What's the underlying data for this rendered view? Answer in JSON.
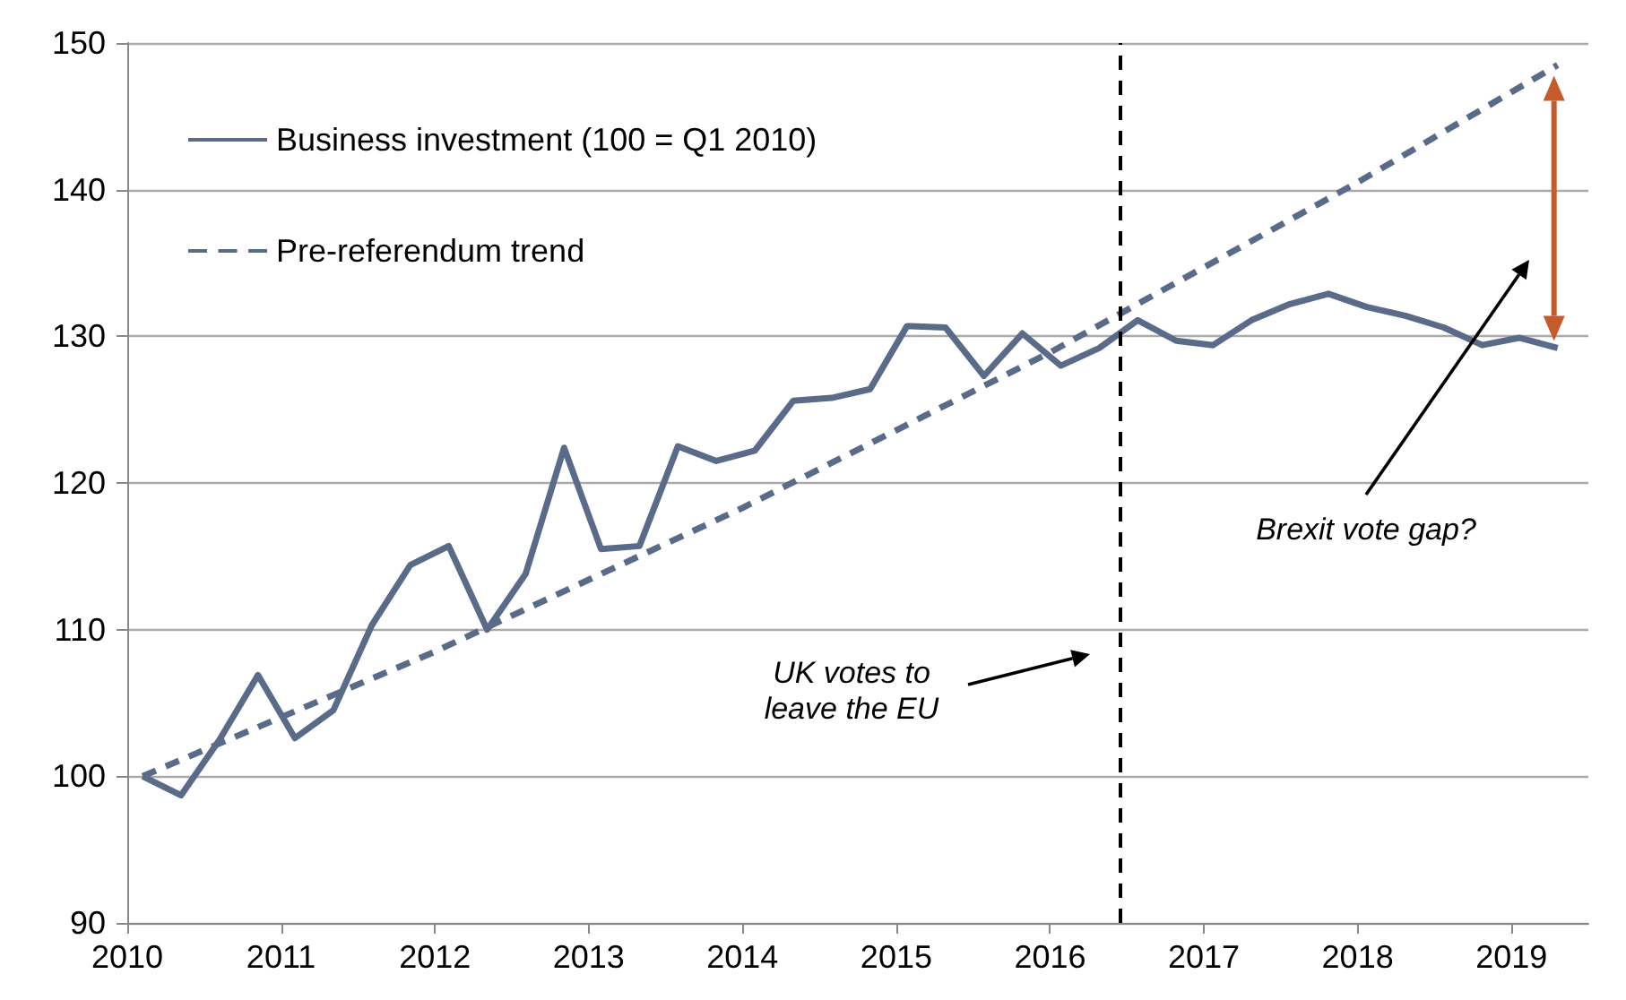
{
  "chart_data": {
    "type": "line",
    "x": [
      2010.1,
      2010.35,
      2010.6,
      2010.85,
      2011.09,
      2011.34,
      2011.59,
      2011.84,
      2012.09,
      2012.34,
      2012.59,
      2012.84,
      2013.08,
      2013.33,
      2013.58,
      2013.83,
      2014.08,
      2014.33,
      2014.58,
      2014.83,
      2015.07,
      2015.32,
      2015.57,
      2015.82,
      2016.07,
      2016.32,
      2016.57,
      2016.82,
      2017.06,
      2017.31,
      2017.56,
      2017.81,
      2018.06,
      2018.31,
      2018.56,
      2018.81,
      2019.05,
      2019.3
    ],
    "series": [
      {
        "name": "Business investment (100 = Q1 2010)",
        "color": "#5a6b8a",
        "line_style": "solid",
        "values": [
          100,
          98.7,
          102.5,
          106.9,
          102.6,
          104.5,
          110.3,
          114.4,
          115.7,
          110.0,
          113.8,
          122.4,
          115.5,
          115.7,
          122.5,
          121.5,
          122.2,
          125.6,
          125.8,
          126.4,
          130.7,
          130.6,
          127.3,
          130.2,
          128.0,
          129.2,
          131.1,
          129.7,
          129.4,
          131.1,
          132.2,
          132.9,
          132.0,
          131.4,
          130.6,
          129.4,
          129.9,
          129.2
        ]
      },
      {
        "name": "Pre-referendum trend",
        "color": "#5a6b8a",
        "line_style": "dashed",
        "x": [
          2010.1,
          2012,
          2014,
          2016,
          2018,
          2019.3
        ],
        "values": [
          100,
          108.5,
          118.3,
          128.9,
          140.5,
          148.5
        ]
      }
    ],
    "xlim": [
      2010,
      2019.5
    ],
    "xticks": [
      2010,
      2011,
      2012,
      2013,
      2014,
      2015,
      2016,
      2017,
      2018,
      2019
    ],
    "ylim": [
      90,
      150
    ],
    "yticks": [
      90,
      100,
      110,
      120,
      130,
      140,
      150
    ],
    "grid": "y",
    "legend": "top left",
    "marker": "none",
    "ref_lines": [
      {
        "axis": "x",
        "value": 2016.45,
        "label": null,
        "color": "#000000",
        "line_style": "dashed"
      }
    ],
    "annotations": [
      "UK votes to leave the EU",
      "Brexit vote gap?"
    ]
  }
}
